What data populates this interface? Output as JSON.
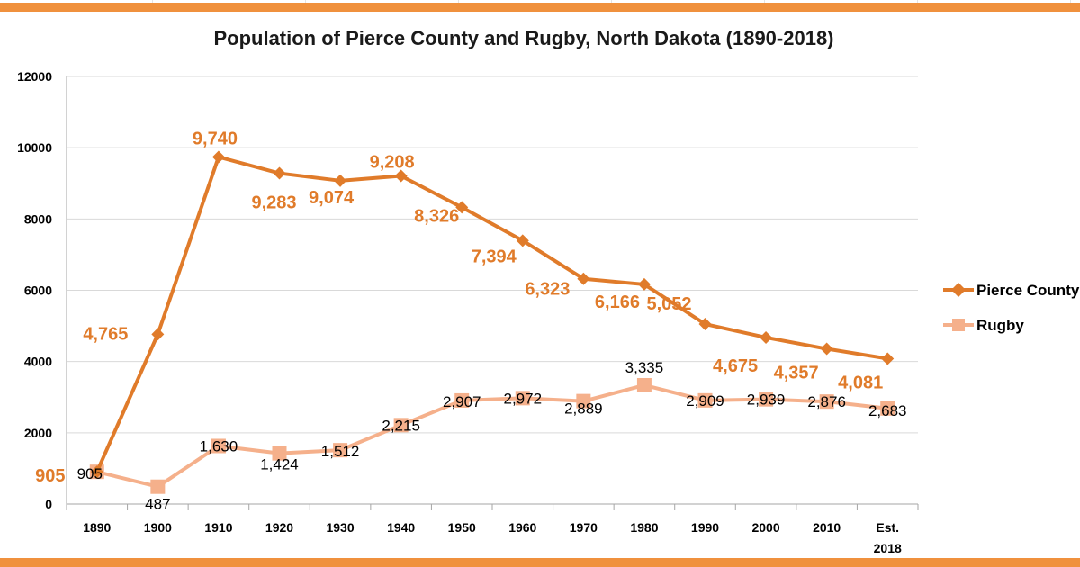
{
  "colors": {
    "pierce": "#e07b2a",
    "pierce_label": "#e07b2a",
    "rugby": "#f5b08b",
    "grid": "#d9d9d9",
    "frame": "#f0913d"
  },
  "chart_data": {
    "type": "line",
    "title": "Population of Pierce County and Rugby, North Dakota (1890-2018)",
    "xlabel": "",
    "ylabel": "",
    "categories": [
      "1890",
      "1900",
      "1910",
      "1920",
      "1930",
      "1940",
      "1950",
      "1960",
      "1970",
      "1980",
      "1990",
      "2000",
      "2010",
      "Est. 2018"
    ],
    "ylim": [
      0,
      12000
    ],
    "yticks": [
      "0",
      "2000",
      "4000",
      "6000",
      "8000",
      "10000",
      "12000"
    ],
    "grid": true,
    "legend_position": "right",
    "series": [
      {
        "name": "Pierce County",
        "marker": "diamond",
        "values": [
          905,
          4765,
          9740,
          9283,
          9074,
          9208,
          8326,
          7394,
          6323,
          6166,
          5052,
          4675,
          4357,
          4081
        ],
        "labels": [
          "905",
          "4,765",
          "9,740",
          "9,283",
          "9,074",
          "9,208",
          "8,326",
          "7,394",
          "6,323",
          "6,166",
          "5,052",
          "4,675",
          "4,357",
          "4,081"
        ]
      },
      {
        "name": "Rugby",
        "marker": "square",
        "values": [
          905,
          487,
          1630,
          1424,
          1512,
          2215,
          2907,
          2972,
          2889,
          3335,
          2909,
          2939,
          2876,
          2683
        ],
        "labels": [
          "905",
          "487",
          "1,630",
          "1,424",
          "1,512",
          "2,215",
          "2,907",
          "2,972",
          "2,889",
          "3,335",
          "2,909",
          "2,939",
          "2,876",
          "2,683"
        ]
      }
    ]
  }
}
